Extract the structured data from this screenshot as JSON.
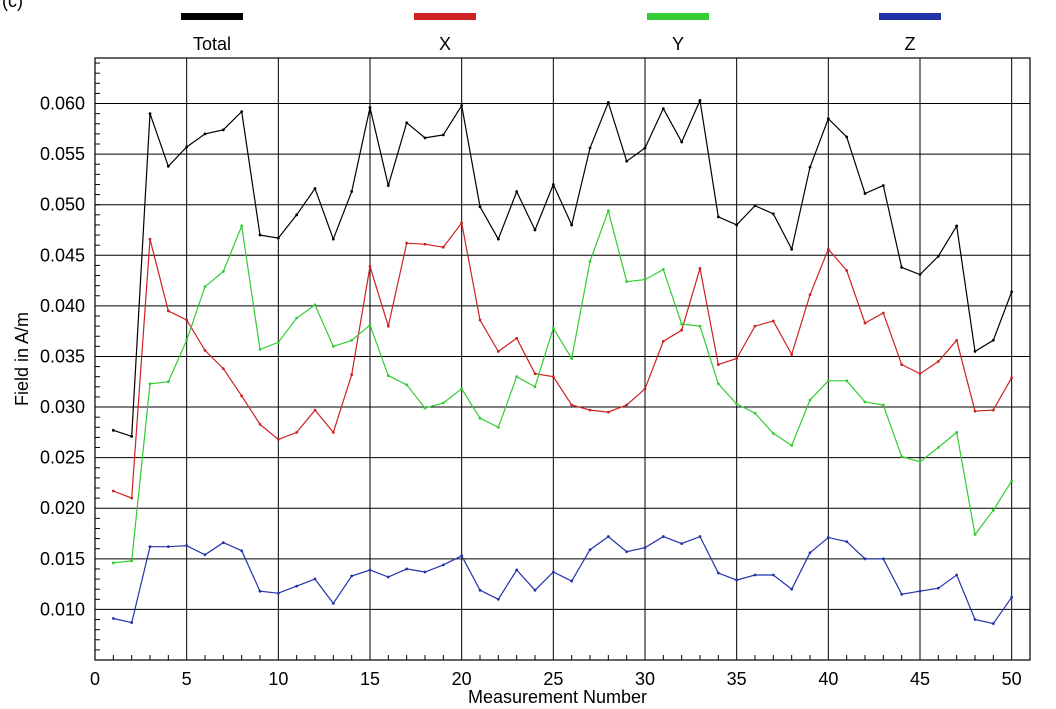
{
  "corner_label": "(c)",
  "chart_data": {
    "type": "line",
    "xlabel": "Measurement Number",
    "ylabel": "Field in A/m",
    "xlim": [
      0,
      51
    ],
    "ylim": [
      0.005,
      0.0645
    ],
    "x_ticks": [
      0,
      5,
      10,
      15,
      20,
      25,
      30,
      35,
      40,
      45,
      50
    ],
    "y_ticks": [
      "0.010",
      "0.015",
      "0.020",
      "0.025",
      "0.030",
      "0.035",
      "0.040",
      "0.045",
      "0.050",
      "0.055",
      "0.060"
    ],
    "grid": true,
    "legend_position": "top",
    "x": [
      1,
      2,
      3,
      4,
      5,
      6,
      7,
      8,
      9,
      10,
      11,
      12,
      13,
      14,
      15,
      16,
      17,
      18,
      19,
      20,
      21,
      22,
      23,
      24,
      25,
      26,
      27,
      28,
      29,
      30,
      31,
      32,
      33,
      34,
      35,
      36,
      37,
      38,
      39,
      40,
      41,
      42,
      43,
      44,
      45,
      46,
      47,
      48,
      49,
      50
    ],
    "series": [
      {
        "name": "Total",
        "color": "#000000",
        "values": [
          0.0277,
          0.0271,
          0.059,
          0.0538,
          0.0557,
          0.057,
          0.0574,
          0.0592,
          0.047,
          0.0467,
          0.049,
          0.0516,
          0.0466,
          0.0513,
          0.0596,
          0.0519,
          0.0581,
          0.0566,
          0.0569,
          0.0598,
          0.0498,
          0.0466,
          0.0513,
          0.0475,
          0.052,
          0.048,
          0.0556,
          0.0601,
          0.0543,
          0.0556,
          0.0595,
          0.0562,
          0.0603,
          0.0488,
          0.048,
          0.0499,
          0.0491,
          0.0456,
          0.0537,
          0.0585,
          0.0567,
          0.0511,
          0.0519,
          0.0438,
          0.0431,
          0.0449,
          0.0479,
          0.0355,
          0.0366,
          0.0414
        ]
      },
      {
        "name": "X",
        "color": "#cc2222",
        "values": [
          0.0217,
          0.021,
          0.0466,
          0.0395,
          0.0386,
          0.0356,
          0.0338,
          0.0311,
          0.0283,
          0.0268,
          0.0275,
          0.0297,
          0.0275,
          0.0332,
          0.0439,
          0.038,
          0.0462,
          0.0461,
          0.0458,
          0.0482,
          0.0386,
          0.0355,
          0.0368,
          0.0333,
          0.033,
          0.0302,
          0.0297,
          0.0295,
          0.0302,
          0.0318,
          0.0365,
          0.0376,
          0.0437,
          0.0342,
          0.0348,
          0.038,
          0.0385,
          0.0352,
          0.0411,
          0.0456,
          0.0435,
          0.0383,
          0.0393,
          0.0342,
          0.0333,
          0.0345,
          0.0366,
          0.0296,
          0.0297,
          0.0329
        ]
      },
      {
        "name": "Y",
        "color": "#33cc33",
        "values": [
          0.0146,
          0.0148,
          0.0323,
          0.0325,
          0.0366,
          0.0419,
          0.0434,
          0.0479,
          0.0357,
          0.0364,
          0.0388,
          0.0401,
          0.036,
          0.0366,
          0.0381,
          0.0331,
          0.0322,
          0.0299,
          0.0304,
          0.0318,
          0.0289,
          0.028,
          0.033,
          0.032,
          0.0378,
          0.0348,
          0.0444,
          0.0494,
          0.0424,
          0.0426,
          0.0436,
          0.0382,
          0.038,
          0.0323,
          0.0303,
          0.0294,
          0.0274,
          0.0262,
          0.0307,
          0.0326,
          0.0326,
          0.0305,
          0.0302,
          0.0251,
          0.0246,
          0.026,
          0.0275,
          0.0174,
          0.0198,
          0.0227
        ]
      },
      {
        "name": "Z",
        "color": "#2233aa",
        "values": [
          0.0091,
          0.0087,
          0.0162,
          0.0162,
          0.0163,
          0.0154,
          0.0166,
          0.0158,
          0.0118,
          0.0116,
          0.0123,
          0.013,
          0.0106,
          0.0133,
          0.0139,
          0.0132,
          0.014,
          0.0137,
          0.0144,
          0.0153,
          0.0119,
          0.011,
          0.0139,
          0.0119,
          0.0137,
          0.0128,
          0.0159,
          0.0172,
          0.0157,
          0.0161,
          0.0172,
          0.0165,
          0.0172,
          0.0136,
          0.0129,
          0.0134,
          0.0134,
          0.012,
          0.0156,
          0.0171,
          0.0167,
          0.015,
          0.015,
          0.0115,
          0.0118,
          0.0121,
          0.0134,
          0.009,
          0.0086,
          0.0112
        ]
      }
    ]
  }
}
